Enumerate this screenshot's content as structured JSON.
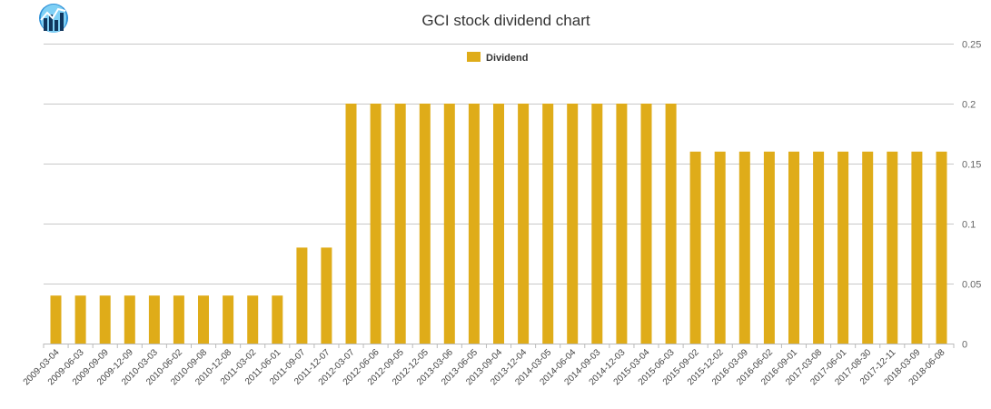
{
  "chart_data": {
    "type": "bar",
    "title": "GCI stock dividend chart",
    "legend": {
      "entries": [
        "Dividend"
      ],
      "placement": "top-center"
    },
    "logo": "stock-chart-logo",
    "colors": {
      "bar": "#dfac19",
      "grid": "#c8c8c8",
      "text": "#333333"
    },
    "ylim": [
      0,
      0.25
    ],
    "yticks": [
      "0",
      "0.05",
      "0.1",
      "0.15",
      "0.2",
      "0.25"
    ],
    "ytick_values": [
      0,
      0.05,
      0.1,
      0.15,
      0.2,
      0.25
    ],
    "yaxis_position": "right",
    "grid": true,
    "series": [
      {
        "name": "Dividend"
      }
    ],
    "categories": [
      "2009-03-04",
      "2009-06-03",
      "2009-09-09",
      "2009-12-09",
      "2010-03-03",
      "2010-06-02",
      "2010-09-08",
      "2010-12-08",
      "2011-03-02",
      "2011-06-01",
      "2011-09-07",
      "2011-12-07",
      "2012-03-07",
      "2012-06-06",
      "2012-09-05",
      "2012-12-05",
      "2013-03-06",
      "2013-06-05",
      "2013-09-04",
      "2013-12-04",
      "2014-03-05",
      "2014-06-04",
      "2014-09-03",
      "2014-12-03",
      "2015-03-04",
      "2015-06-03",
      "2015-09-02",
      "2015-12-02",
      "2016-03-09",
      "2016-06-02",
      "2016-09-01",
      "2017-03-08",
      "2017-06-01",
      "2017-08-30",
      "2017-12-11",
      "2018-03-09",
      "2018-06-08"
    ],
    "values": [
      0.04,
      0.04,
      0.04,
      0.04,
      0.04,
      0.04,
      0.04,
      0.04,
      0.04,
      0.04,
      0.08,
      0.08,
      0.2,
      0.2,
      0.2,
      0.2,
      0.2,
      0.2,
      0.2,
      0.2,
      0.2,
      0.2,
      0.2,
      0.2,
      0.2,
      0.2,
      0.16,
      0.16,
      0.16,
      0.16,
      0.16,
      0.16,
      0.16,
      0.16,
      0.16,
      0.16,
      0.16
    ]
  }
}
